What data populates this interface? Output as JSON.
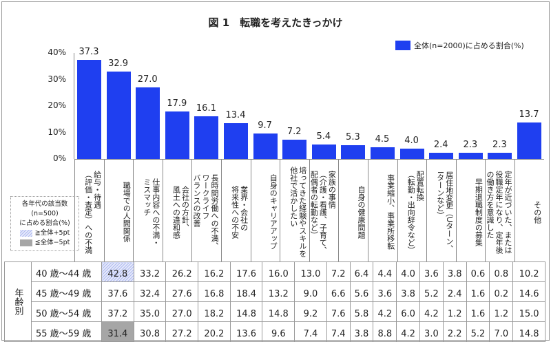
{
  "title": "図 1　転職を考えたきっかけ",
  "legend": {
    "series": "全体(n=2000)に占める割合(%)",
    "note_title": [
      "各年代の該当数",
      "(n=500)",
      "に占める割合(%)"
    ],
    "hi": "≧全体+5pt",
    "lo": "≦全体−5pt"
  },
  "table": {
    "group_label": "年齢別",
    "rows": [
      {
        "age": "40 歳～44 歳",
        "values": [
          "42.8",
          "33.2",
          "26.2",
          "16.2",
          "17.6",
          "16.0",
          "13.0",
          "7.2",
          "6.4",
          "4.4",
          "4.0",
          "3.6",
          "3.8",
          "0.6",
          "0.8",
          "10.2"
        ],
        "hi": [
          0
        ],
        "lo": []
      },
      {
        "age": "45 歳～49 歳",
        "values": [
          "37.6",
          "32.4",
          "27.6",
          "16.8",
          "18.4",
          "13.2",
          "9.0",
          "6.6",
          "5.6",
          "3.6",
          "3.8",
          "5.2",
          "2.4",
          "1.6",
          "0.2",
          "14.6"
        ],
        "hi": [],
        "lo": []
      },
      {
        "age": "50 歳～54 歳",
        "values": [
          "37.2",
          "35.0",
          "27.0",
          "18.2",
          "14.8",
          "14.8",
          "9.2",
          "7.6",
          "5.8",
          "4.2",
          "6.0",
          "4.2",
          "1.2",
          "1.6",
          "1.2",
          "15.0"
        ],
        "hi": [],
        "lo": []
      },
      {
        "age": "55 歳～59 歳",
        "values": [
          "31.4",
          "30.8",
          "27.2",
          "20.2",
          "13.6",
          "9.6",
          "7.4",
          "7.4",
          "3.8",
          "8.8",
          "4.2",
          "3.0",
          "2.2",
          "5.2",
          "7.0",
          "14.8"
        ],
        "hi": [],
        "lo": [
          0
        ]
      }
    ]
  },
  "chart_data": {
    "type": "bar",
    "title": "図 1　転職を考えたきっかけ",
    "ylim": [
      0,
      40
    ],
    "yticks": [
      "0%",
      "10%",
      "20%",
      "30%",
      "40%"
    ],
    "categories": [
      "給与・待遇\n（評価・査定）への不満",
      "職場での人間関係",
      "仕事内容への不満・\nミスマッチ",
      "会社の方針、\n風土への違和感",
      "長時間労働への不満、\nワークライフ\nバランスの改善",
      "業界・会社の\n将来性への不安",
      "自身のキャリアアップ",
      "培ってきた経験やスキルを\n他社で活かしたい",
      "家族の事情\n（介護・看護、子育て、\n配偶者の転勤など）",
      "自身の健康問題",
      "事業縮小、事業所移転",
      "配置転換\n（転勤・出向辞令など）",
      "居住地変更（Uターン、\nIターンなど）",
      "早期退職制度の募集",
      "定年が近づいた、または\n役職定年になり、定年後\nの働き方を意識した",
      "その他"
    ],
    "series": [
      {
        "name": "全体(n=2000)に占める割合(%)",
        "values": [
          37.3,
          32.9,
          27.0,
          17.9,
          16.1,
          13.4,
          9.7,
          7.2,
          5.4,
          5.3,
          4.5,
          4.0,
          2.4,
          2.3,
          2.3,
          13.7
        ],
        "color": "#1f3ff0"
      }
    ],
    "legend": "top-right"
  }
}
